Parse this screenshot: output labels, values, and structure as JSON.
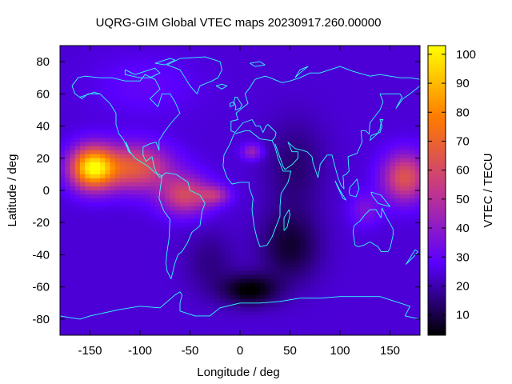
{
  "chart_data": {
    "type": "heatmap",
    "title": "UQRG-GIM Global VTEC maps 20230917.260.00000",
    "xlabel": "Longitude / deg",
    "ylabel": "Latitude / deg",
    "colorbar_label": "VTEC / TECU",
    "xlim": [
      -180,
      180
    ],
    "ylim": [
      -90,
      90
    ],
    "zlim": [
      3,
      103
    ],
    "x_ticks": [
      -150,
      -100,
      -50,
      0,
      50,
      100,
      150
    ],
    "y_ticks": [
      -80,
      -60,
      -40,
      -20,
      0,
      20,
      40,
      60,
      80
    ],
    "colorbar_ticks": [
      10,
      20,
      30,
      40,
      50,
      60,
      70,
      80,
      90,
      100
    ],
    "colormap": "gnuplot-pm3d-default",
    "colormap_stops": [
      "#000000",
      "#5a00ff",
      "#c3368c",
      "#ff7a00",
      "#ffff00"
    ],
    "coastline_color": "#30ffff",
    "background_level": 24,
    "features": [
      {
        "lon": -148,
        "lat": 14,
        "sx": 22,
        "sy": 13,
        "amp": 72
      },
      {
        "lon": -105,
        "lat": 14,
        "sx": 35,
        "sy": 14,
        "amp": 42
      },
      {
        "lon": -55,
        "lat": -3,
        "sx": 25,
        "sy": 12,
        "amp": 35
      },
      {
        "lon": -25,
        "lat": -3,
        "sx": 15,
        "sy": 6,
        "amp": 22
      },
      {
        "lon": 12,
        "lat": 24,
        "sx": 10,
        "sy": 5,
        "amp": 20
      },
      {
        "lon": 165,
        "lat": 8,
        "sx": 22,
        "sy": 15,
        "amp": 40
      },
      {
        "lon": 125,
        "lat": -12,
        "sx": 15,
        "sy": 10,
        "amp": 12
      },
      {
        "lon": 10,
        "lat": -62,
        "sx": 28,
        "sy": 10,
        "amp": -21
      },
      {
        "lon": 50,
        "lat": -35,
        "sx": 30,
        "sy": 22,
        "amp": -16
      },
      {
        "lon": 55,
        "lat": 15,
        "sx": 30,
        "sy": 28,
        "amp": -10
      },
      {
        "lon": -30,
        "lat": -45,
        "sx": 25,
        "sy": 20,
        "amp": -8
      },
      {
        "lon": -95,
        "lat": 65,
        "sx": 50,
        "sy": 18,
        "amp": 6
      }
    ],
    "coastlines": [
      [
        [
          -168,
          65
        ],
        [
          -162,
          70
        ],
        [
          -155,
          71
        ],
        [
          -140,
          70
        ],
        [
          -128,
          70
        ],
        [
          -115,
          68
        ],
        [
          -100,
          68
        ],
        [
          -95,
          72
        ],
        [
          -85,
          69
        ],
        [
          -80,
          63
        ],
        [
          -90,
          57
        ],
        [
          -82,
          52
        ],
        [
          -78,
          60
        ],
        [
          -70,
          60
        ],
        [
          -65,
          55
        ],
        [
          -60,
          48
        ],
        [
          -66,
          44
        ],
        [
          -70,
          41
        ],
        [
          -76,
          36
        ],
        [
          -81,
          31
        ],
        [
          -81,
          25
        ],
        [
          -84,
          30
        ],
        [
          -90,
          29
        ],
        [
          -97,
          27
        ],
        [
          -97,
          22
        ],
        [
          -94,
          18
        ],
        [
          -88,
          21
        ],
        [
          -86,
          15
        ],
        [
          -83,
          10
        ],
        [
          -80,
          8
        ],
        [
          -78,
          9
        ]
      ],
      [
        [
          -78,
          9
        ],
        [
          -85,
          11
        ],
        [
          -92,
          15
        ],
        [
          -105,
          20
        ],
        [
          -110,
          24
        ],
        [
          -114,
          30
        ],
        [
          -112,
          25
        ],
        [
          -110,
          23
        ],
        [
          -117,
          32
        ],
        [
          -121,
          35
        ],
        [
          -124,
          41
        ],
        [
          -124,
          48
        ],
        [
          -130,
          54
        ],
        [
          -140,
          60
        ],
        [
          -152,
          60
        ],
        [
          -158,
          57
        ],
        [
          -165,
          60
        ],
        [
          -168,
          65
        ]
      ],
      [
        [
          -78,
          9
        ],
        [
          -74,
          11
        ],
        [
          -64,
          10
        ],
        [
          -52,
          5
        ],
        [
          -50,
          0
        ],
        [
          -40,
          -3
        ],
        [
          -35,
          -8
        ],
        [
          -38,
          -13
        ],
        [
          -40,
          -22
        ],
        [
          -48,
          -26
        ],
        [
          -53,
          -33
        ],
        [
          -58,
          -38
        ],
        [
          -62,
          -40
        ],
        [
          -65,
          -45
        ],
        [
          -67,
          -50
        ],
        [
          -69,
          -55
        ],
        [
          -73,
          -50
        ],
        [
          -74,
          -45
        ],
        [
          -73,
          -38
        ],
        [
          -71,
          -30
        ],
        [
          -70,
          -18
        ],
        [
          -76,
          -13
        ],
        [
          -81,
          -5
        ],
        [
          -80,
          0
        ],
        [
          -78,
          9
        ]
      ],
      [
        [
          -73,
          78
        ],
        [
          -60,
          82
        ],
        [
          -35,
          83
        ],
        [
          -20,
          80
        ],
        [
          -18,
          75
        ],
        [
          -22,
          70
        ],
        [
          -28,
          68
        ],
        [
          -40,
          65
        ],
        [
          -43,
          60
        ],
        [
          -50,
          65
        ],
        [
          -55,
          70
        ],
        [
          -60,
          75
        ],
        [
          -73,
          78
        ]
      ],
      [
        [
          -17,
          15
        ],
        [
          -16,
          22
        ],
        [
          -10,
          29
        ],
        [
          -6,
          35
        ],
        [
          5,
          37
        ],
        [
          10,
          37
        ],
        [
          20,
          32
        ],
        [
          32,
          31
        ],
        [
          35,
          27
        ],
        [
          38,
          20
        ],
        [
          43,
          12
        ],
        [
          51,
          12
        ],
        [
          48,
          5
        ],
        [
          41,
          -2
        ],
        [
          40,
          -10
        ],
        [
          40,
          -16
        ],
        [
          35,
          -24
        ],
        [
          32,
          -29
        ],
        [
          27,
          -34
        ],
        [
          20,
          -35
        ],
        [
          17,
          -30
        ],
        [
          14,
          -22
        ],
        [
          12,
          -12
        ],
        [
          13,
          -5
        ],
        [
          9,
          2
        ],
        [
          9,
          5
        ],
        [
          0,
          5
        ],
        [
          -8,
          4
        ],
        [
          -13,
          8
        ],
        [
          -17,
          15
        ]
      ],
      [
        [
          -9,
          39
        ],
        [
          -9,
          43
        ],
        [
          -2,
          44
        ],
        [
          -4,
          48
        ],
        [
          2,
          51
        ],
        [
          8,
          54
        ],
        [
          5,
          60
        ],
        [
          10,
          64
        ],
        [
          15,
          69
        ],
        [
          25,
          71
        ],
        [
          30,
          70
        ],
        [
          42,
          67
        ],
        [
          50,
          68
        ],
        [
          60,
          70
        ],
        [
          70,
          73
        ],
        [
          80,
          73
        ],
        [
          100,
          77
        ],
        [
          113,
          74
        ],
        [
          130,
          71
        ],
        [
          140,
          72
        ],
        [
          160,
          70
        ],
        [
          170,
          70
        ],
        [
          180,
          69
        ]
      ],
      [
        [
          28,
          41
        ],
        [
          36,
          36
        ],
        [
          35,
          33
        ],
        [
          32,
          31
        ]
      ],
      [
        [
          -9,
          39
        ],
        [
          -9,
          37
        ],
        [
          -5,
          36
        ],
        [
          3,
          42
        ],
        [
          12,
          44
        ],
        [
          16,
          40
        ],
        [
          18,
          40
        ],
        [
          20,
          40
        ],
        [
          23,
          36
        ],
        [
          26,
          40
        ],
        [
          28,
          41
        ]
      ],
      [
        [
          35,
          29
        ],
        [
          43,
          15
        ],
        [
          45,
          13
        ],
        [
          52,
          16
        ],
        [
          58,
          20
        ],
        [
          58,
          24
        ],
        [
          52,
          24
        ],
        [
          48,
          30
        ],
        [
          55,
          26
        ],
        [
          62,
          25
        ],
        [
          67,
          24
        ],
        [
          72,
          21
        ],
        [
          73,
          17
        ],
        [
          78,
          8
        ],
        [
          80,
          15
        ],
        [
          80,
          16
        ],
        [
          87,
          22
        ],
        [
          92,
          22
        ],
        [
          94,
          17
        ],
        [
          98,
          8
        ],
        [
          101,
          3
        ],
        [
          104,
          1
        ],
        [
          103,
          9
        ],
        [
          106,
          10
        ],
        [
          109,
          12
        ],
        [
          108,
          21
        ],
        [
          117,
          23
        ],
        [
          122,
          30
        ],
        [
          121,
          37
        ],
        [
          126,
          37
        ],
        [
          129,
          35
        ],
        [
          130,
          42
        ],
        [
          140,
          50
        ],
        [
          143,
          55
        ],
        [
          140,
          60
        ],
        [
          150,
          60
        ],
        [
          160,
          60
        ],
        [
          162,
          58
        ],
        [
          156,
          51
        ],
        [
          163,
          57
        ],
        [
          170,
          60
        ],
        [
          180,
          65
        ]
      ],
      [
        [
          114,
          -22
        ],
        [
          113,
          -26
        ],
        [
          115,
          -34
        ],
        [
          118,
          -35
        ],
        [
          124,
          -34
        ],
        [
          130,
          -32
        ],
        [
          138,
          -35
        ],
        [
          141,
          -38
        ],
        [
          148,
          -38
        ],
        [
          150,
          -36
        ],
        [
          153,
          -28
        ],
        [
          153,
          -24
        ],
        [
          145,
          -15
        ],
        [
          142,
          -11
        ],
        [
          141,
          -17
        ],
        [
          136,
          -12
        ],
        [
          130,
          -12
        ],
        [
          125,
          -15
        ],
        [
          120,
          -19
        ],
        [
          114,
          -22
        ]
      ],
      [
        [
          95,
          6
        ],
        [
          100,
          0
        ],
        [
          106,
          -6
        ],
        [
          103,
          -5
        ],
        [
          97,
          3
        ],
        [
          95,
          6
        ]
      ],
      [
        [
          109,
          -1
        ],
        [
          110,
          2
        ],
        [
          117,
          7
        ],
        [
          119,
          1
        ],
        [
          116,
          -4
        ],
        [
          110,
          -3
        ],
        [
          109,
          -1
        ]
      ],
      [
        [
          131,
          -1
        ],
        [
          141,
          -3
        ],
        [
          150,
          -10
        ],
        [
          143,
          -9
        ],
        [
          138,
          -8
        ],
        [
          132,
          -3
        ],
        [
          131,
          -1
        ]
      ],
      [
        [
          130,
          31
        ],
        [
          131,
          34
        ],
        [
          135,
          35
        ],
        [
          140,
          36
        ],
        [
          142,
          40
        ],
        [
          140,
          44
        ],
        [
          143,
          44
        ],
        [
          141,
          42
        ],
        [
          140,
          38
        ],
        [
          137,
          35
        ],
        [
          130,
          31
        ]
      ],
      [
        [
          -5,
          50
        ],
        [
          0,
          51
        ],
        [
          2,
          53
        ],
        [
          0,
          55
        ],
        [
          -3,
          58
        ],
        [
          -5,
          58
        ],
        [
          -6,
          55
        ],
        [
          -4,
          52
        ],
        [
          -5,
          50
        ]
      ],
      [
        [
          -10,
          52
        ],
        [
          -6,
          53
        ],
        [
          -7,
          55
        ],
        [
          -10,
          54
        ],
        [
          -10,
          52
        ]
      ],
      [
        [
          -24,
          65
        ],
        [
          -18,
          66
        ],
        [
          -13,
          65
        ],
        [
          -18,
          63
        ],
        [
          -24,
          65
        ]
      ],
      [
        [
          44,
          -25
        ],
        [
          47,
          -23
        ],
        [
          50,
          -15
        ],
        [
          49,
          -12
        ],
        [
          44,
          -17
        ],
        [
          44,
          -25
        ]
      ],
      [
        [
          166,
          -46
        ],
        [
          174,
          -41
        ],
        [
          178,
          -38
        ],
        [
          175,
          -37
        ],
        [
          172,
          -40
        ],
        [
          166,
          -46
        ]
      ],
      [
        [
          -180,
          -78
        ],
        [
          -160,
          -80
        ],
        [
          -150,
          -78
        ],
        [
          -120,
          -74
        ],
        [
          -100,
          -72
        ],
        [
          -80,
          -73
        ],
        [
          -65,
          -65
        ],
        [
          -60,
          -63
        ],
        [
          -58,
          -65
        ],
        [
          -60,
          -70
        ],
        [
          -60,
          -75
        ],
        [
          -45,
          -78
        ],
        [
          -30,
          -78
        ],
        [
          -20,
          -73
        ],
        [
          0,
          -70
        ],
        [
          20,
          -70
        ],
        [
          40,
          -69
        ],
        [
          60,
          -67
        ],
        [
          80,
          -67
        ],
        [
          100,
          -66
        ],
        [
          120,
          -66
        ],
        [
          140,
          -66
        ],
        [
          160,
          -70
        ],
        [
          170,
          -72
        ],
        [
          165,
          -78
        ],
        [
          180,
          -80
        ]
      ],
      [
        [
          -160,
          58
        ],
        [
          -150,
          60
        ],
        [
          -146,
          61
        ],
        [
          -140,
          60
        ]
      ],
      [
        [
          -115,
          75
        ],
        [
          -105,
          72
        ],
        [
          -95,
          74
        ],
        [
          -85,
          76
        ],
        [
          -80,
          73
        ],
        [
          -90,
          70
        ],
        [
          -100,
          70
        ],
        [
          -115,
          72
        ],
        [
          -115,
          75
        ]
      ],
      [
        [
          -85,
          79
        ],
        [
          -70,
          82
        ],
        [
          -65,
          81
        ],
        [
          -75,
          78
        ],
        [
          -85,
          79
        ]
      ],
      [
        [
          10,
          79
        ],
        [
          20,
          80
        ],
        [
          25,
          78
        ],
        [
          15,
          77
        ],
        [
          10,
          79
        ]
      ],
      [
        [
          55,
          70
        ],
        [
          60,
          75
        ],
        [
          68,
          77
        ],
        [
          60,
          73
        ],
        [
          55,
          70
        ]
      ]
    ]
  }
}
